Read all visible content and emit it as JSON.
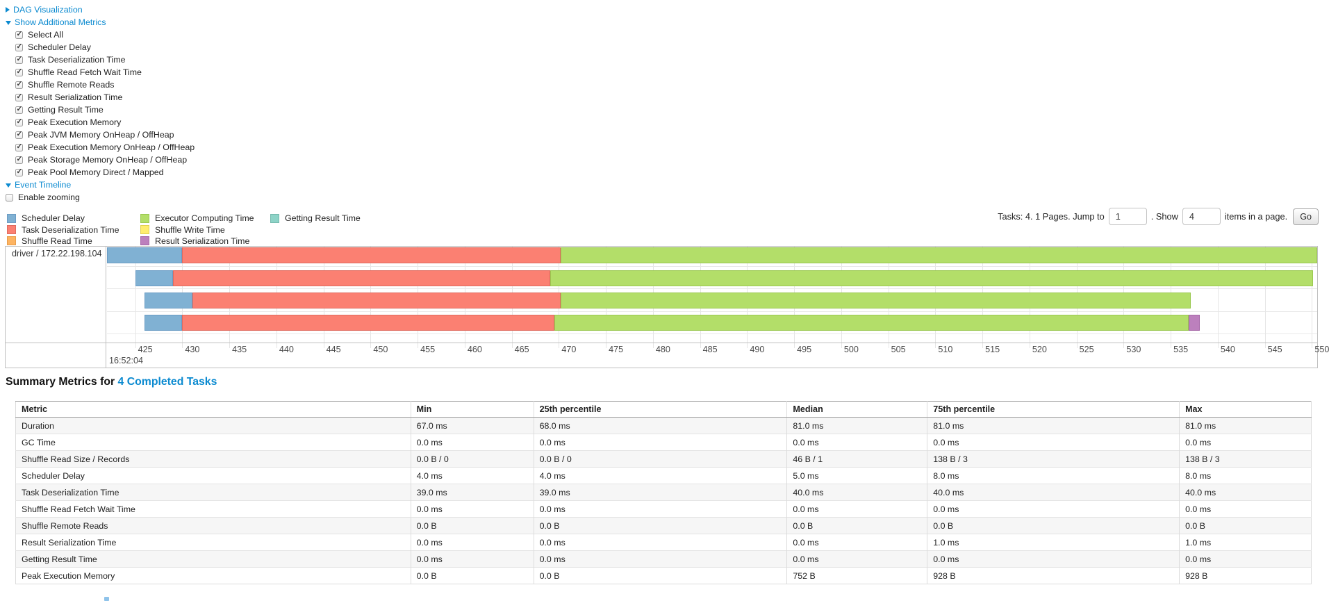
{
  "controls": {
    "dag_label": "DAG Visualization",
    "metrics_label": "Show Additional Metrics",
    "metric_items": [
      {
        "label": "Select All",
        "checked": true
      },
      {
        "label": "Scheduler Delay",
        "checked": true
      },
      {
        "label": "Task Deserialization Time",
        "checked": true
      },
      {
        "label": "Shuffle Read Fetch Wait Time",
        "checked": true
      },
      {
        "label": "Shuffle Remote Reads",
        "checked": true
      },
      {
        "label": "Result Serialization Time",
        "checked": true
      },
      {
        "label": "Getting Result Time",
        "checked": true
      },
      {
        "label": "Peak Execution Memory",
        "checked": true
      },
      {
        "label": "Peak JVM Memory OnHeap / OffHeap",
        "checked": true
      },
      {
        "label": "Peak Execution Memory OnHeap / OffHeap",
        "checked": true
      },
      {
        "label": "Peak Storage Memory OnHeap / OffHeap",
        "checked": true
      },
      {
        "label": "Peak Pool Memory Direct / Mapped",
        "checked": true
      }
    ],
    "event_timeline_label": "Event Timeline",
    "enable_zooming_label": "Enable zooming",
    "enable_zooming_checked": false
  },
  "colors": {
    "scheduler_delay": {
      "fill": "#80B1D3",
      "border": "#6b9cc4"
    },
    "task_deserialization": {
      "fill": "#FB8072",
      "border": "#e06a5e"
    },
    "shuffle_read": {
      "fill": "#FDB462",
      "border": "#e89c4a"
    },
    "executor_computing": {
      "fill": "#B3DE69",
      "border": "#9ac850"
    },
    "shuffle_write": {
      "fill": "#FFED6F",
      "border": "#e0cf52"
    },
    "result_serialization": {
      "fill": "#BC80BD",
      "border": "#a667a8"
    },
    "getting_result": {
      "fill": "#8DD3C7",
      "border": "#74b9ad"
    }
  },
  "legend": {
    "columns": [
      [
        {
          "metric": "scheduler_delay",
          "label": "Scheduler Delay"
        },
        {
          "metric": "task_deserialization",
          "label": "Task Deserialization Time"
        },
        {
          "metric": "shuffle_read",
          "label": "Shuffle Read Time"
        }
      ],
      [
        {
          "metric": "executor_computing",
          "label": "Executor Computing Time"
        },
        {
          "metric": "shuffle_write",
          "label": "Shuffle Write Time"
        },
        {
          "metric": "result_serialization",
          "label": "Result Serialization Time"
        }
      ],
      [
        {
          "metric": "getting_result",
          "label": "Getting Result Time"
        }
      ]
    ]
  },
  "pagination": {
    "prefix": "Tasks: 4. 1 Pages. Jump to",
    "jump_value": "1",
    "mid": ". Show",
    "show_value": "4",
    "suffix": "items in a page.",
    "go_label": "Go"
  },
  "chart_data": {
    "type": "timeline",
    "title": "Event Timeline",
    "group_label": "driver / 172.22.198.104",
    "x_axis": {
      "unit": "ms",
      "window_start_ms": 422,
      "window_end_ms": 551,
      "tick_start": 425,
      "tick_end": 550,
      "tick_step": 5,
      "major_label": "16:52:04",
      "grid": true
    },
    "tasks": [
      {
        "segments": [
          {
            "metric": "scheduler_delay",
            "start": 422,
            "end": 430
          },
          {
            "metric": "task_deserialization",
            "start": 430,
            "end": 470.2
          },
          {
            "metric": "executor_computing",
            "start": 470.2,
            "end": 551
          }
        ]
      },
      {
        "segments": [
          {
            "metric": "scheduler_delay",
            "start": 425,
            "end": 429
          },
          {
            "metric": "task_deserialization",
            "start": 429,
            "end": 469.1
          },
          {
            "metric": "executor_computing",
            "start": 469.1,
            "end": 550.1
          }
        ]
      },
      {
        "segments": [
          {
            "metric": "scheduler_delay",
            "start": 426,
            "end": 431.1
          },
          {
            "metric": "task_deserialization",
            "start": 431.1,
            "end": 470.2
          },
          {
            "metric": "executor_computing",
            "start": 470.2,
            "end": 537.1
          }
        ]
      },
      {
        "segments": [
          {
            "metric": "scheduler_delay",
            "start": 426,
            "end": 430
          },
          {
            "metric": "task_deserialization",
            "start": 430,
            "end": 469.5
          },
          {
            "metric": "executor_computing",
            "start": 469.5,
            "end": 536.9
          },
          {
            "metric": "result_serialization",
            "start": 536.9,
            "end": 538.1
          }
        ]
      }
    ]
  },
  "summary": {
    "title_prefix": "Summary Metrics for",
    "title_link": "4 Completed Tasks",
    "table": {
      "headers": [
        "Metric",
        "Min",
        "25th percentile",
        "Median",
        "75th percentile",
        "Max"
      ],
      "rows": [
        {
          "metric": "Duration",
          "values": [
            "67.0 ms",
            "68.0 ms",
            "81.0 ms",
            "81.0 ms",
            "81.0 ms"
          ]
        },
        {
          "metric": "GC Time",
          "values": [
            "0.0 ms",
            "0.0 ms",
            "0.0 ms",
            "0.0 ms",
            "0.0 ms"
          ]
        },
        {
          "metric": "Shuffle Read Size / Records",
          "values": [
            "0.0 B / 0",
            "0.0 B / 0",
            "46 B / 1",
            "138 B / 3",
            "138 B / 3"
          ]
        },
        {
          "metric": "Scheduler Delay",
          "values": [
            "4.0 ms",
            "4.0 ms",
            "5.0 ms",
            "8.0 ms",
            "8.0 ms"
          ]
        },
        {
          "metric": "Task Deserialization Time",
          "values": [
            "39.0 ms",
            "39.0 ms",
            "40.0 ms",
            "40.0 ms",
            "40.0 ms"
          ]
        },
        {
          "metric": "Shuffle Read Fetch Wait Time",
          "values": [
            "0.0 ms",
            "0.0 ms",
            "0.0 ms",
            "0.0 ms",
            "0.0 ms"
          ]
        },
        {
          "metric": "Shuffle Remote Reads",
          "values": [
            "0.0 B",
            "0.0 B",
            "0.0 B",
            "0.0 B",
            "0.0 B"
          ]
        },
        {
          "metric": "Result Serialization Time",
          "values": [
            "0.0 ms",
            "0.0 ms",
            "0.0 ms",
            "1.0 ms",
            "1.0 ms"
          ]
        },
        {
          "metric": "Getting Result Time",
          "values": [
            "0.0 ms",
            "0.0 ms",
            "0.0 ms",
            "0.0 ms",
            "0.0 ms"
          ]
        },
        {
          "metric": "Peak Execution Memory",
          "values": [
            "0.0 B",
            "0.0 B",
            "752 B",
            "928 B",
            "928 B"
          ]
        }
      ]
    }
  }
}
